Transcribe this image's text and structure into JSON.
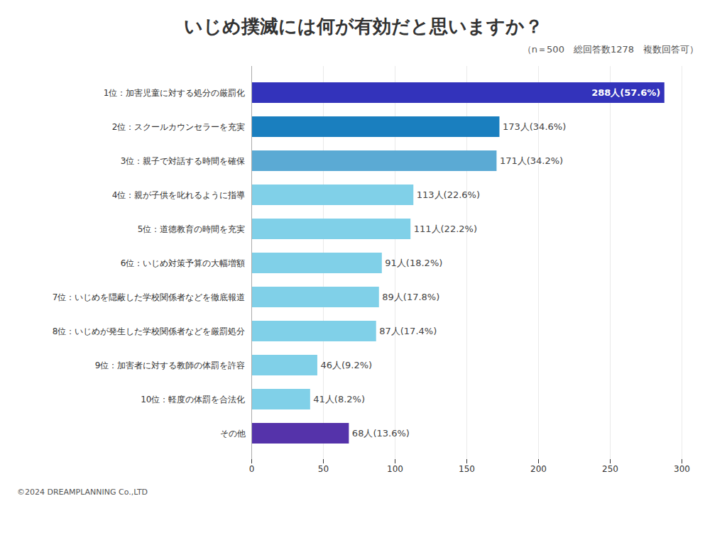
{
  "chart_data": {
    "type": "bar",
    "orientation": "horizontal",
    "title": "いじめ撲滅には何が有効だと思いますか？",
    "subtitle": "（n＝500　総回答数1278　複数回答可）",
    "caption": "©2024 DREAMPLANNING Co.,LTD",
    "categories": [
      "1位：加害児童に対する処分の厳罰化",
      "2位：スクールカウンセラーを充実",
      "3位：親子で対話する時間を確保",
      "4位：親が子供を叱れるように指導",
      "5位：道徳教育の時間を充実",
      "6位：いじめ対策予算の大幅増額",
      "7位：いじめを隠蔽した学校関係者などを徹底報道",
      "8位：いじめが発生した学校関係者などを厳罰処分",
      "9位：加害者に対する教師の体罰を許容",
      "10位：軽度の体罰を合法化",
      "その他"
    ],
    "values": [
      288,
      173,
      171,
      113,
      111,
      91,
      89,
      87,
      46,
      41,
      68
    ],
    "value_labels": [
      "288人(57.6%)",
      "173人(34.6%)",
      "171人(34.2%)",
      "113人(22.6%)",
      "111人(22.2%)",
      "91人(18.2%)",
      "89人(17.8%)",
      "87人(17.4%)",
      "46人(9.2%)",
      "41人(8.2%)",
      "68人(13.6%)"
    ],
    "data_labels": true,
    "colors": [
      "#3333bb",
      "#1a7fbf",
      "#5baad4",
      "#80d0e8",
      "#80d0e8",
      "#80d0e8",
      "#80d0e8",
      "#80d0e8",
      "#80d0e8",
      "#80d0e8",
      "#5533aa"
    ],
    "xlim": [
      0,
      300
    ],
    "xticks": [
      0,
      50,
      100,
      150,
      200,
      250,
      300
    ],
    "grid": true
  }
}
